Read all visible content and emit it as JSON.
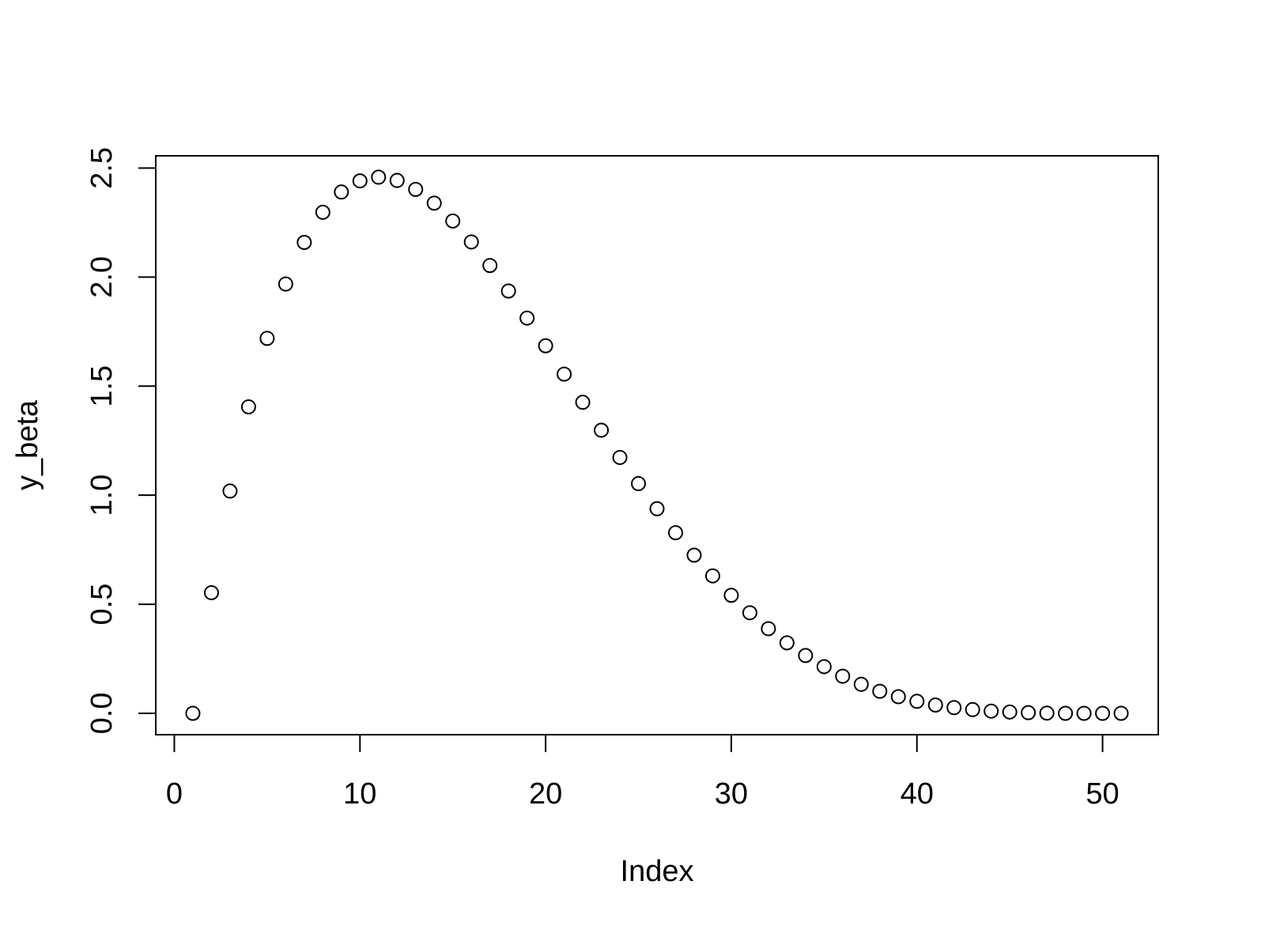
{
  "chart_data": {
    "type": "scatter",
    "x_label": "Index",
    "y_label": "y_beta",
    "x": [
      1,
      2,
      3,
      4,
      5,
      6,
      7,
      8,
      9,
      10,
      11,
      12,
      13,
      14,
      15,
      16,
      17,
      18,
      19,
      20,
      21,
      22,
      23,
      24,
      25,
      26,
      27,
      28,
      29,
      30,
      31,
      32,
      33,
      34,
      35,
      36,
      37,
      38,
      39,
      40,
      41,
      42,
      43,
      44,
      45,
      46,
      47,
      48,
      49,
      50,
      51
    ],
    "values": [
      0,
      0.553,
      1.019,
      1.405,
      1.719,
      1.968,
      2.159,
      2.297,
      2.39,
      2.441,
      2.458,
      2.443,
      2.402,
      2.339,
      2.257,
      2.161,
      2.053,
      1.936,
      1.812,
      1.685,
      1.555,
      1.426,
      1.298,
      1.173,
      1.053,
      0.938,
      0.828,
      0.725,
      0.63,
      0.541,
      0.461,
      0.388,
      0.323,
      0.265,
      0.214,
      0.17,
      0.133,
      0.101,
      0.076,
      0.055,
      0.038,
      0.026,
      0.017,
      0.01,
      0.006,
      0.003,
      0.001,
      0,
      0,
      0,
      0
    ],
    "color": "#000000",
    "xlim": [
      -1,
      53
    ],
    "xticks": [
      0,
      10,
      20,
      30,
      40,
      50
    ],
    "ylim": [
      -0.098,
      2.556
    ],
    "yticks": [
      {
        "value": 0,
        "label": "0.0"
      },
      {
        "value": 0.5,
        "label": "0.5"
      },
      {
        "value": 1,
        "label": "1.0"
      },
      {
        "value": 1.5,
        "label": "1.5"
      },
      {
        "value": 2,
        "label": "2.0"
      },
      {
        "value": 2.5,
        "label": "2.5"
      }
    ]
  }
}
